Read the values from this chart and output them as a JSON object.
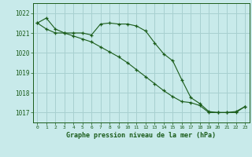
{
  "title": "Graphe pression niveau de la mer (hPa)",
  "background_color": "#c8eaea",
  "grid_color": "#a8d0d0",
  "line_color": "#1a5c1a",
  "xlim": [
    -0.5,
    23.5
  ],
  "ylim": [
    1016.5,
    1022.5
  ],
  "yticks": [
    1017,
    1018,
    1019,
    1020,
    1021,
    1022
  ],
  "xticks": [
    0,
    1,
    2,
    3,
    4,
    5,
    6,
    7,
    8,
    9,
    10,
    11,
    12,
    13,
    14,
    15,
    16,
    17,
    18,
    19,
    20,
    21,
    22,
    23
  ],
  "series1_x": [
    0,
    1,
    2,
    3,
    4,
    5,
    6,
    7,
    8,
    9,
    10,
    11,
    12,
    13,
    14,
    15,
    16,
    17,
    18,
    19,
    20,
    21,
    22,
    23
  ],
  "series1_y": [
    1021.5,
    1021.75,
    1021.2,
    1021.0,
    1021.0,
    1021.0,
    1020.9,
    1021.45,
    1021.5,
    1021.45,
    1021.45,
    1021.35,
    1021.1,
    1020.5,
    1019.95,
    1019.6,
    1018.65,
    1017.75,
    1017.45,
    1017.05,
    1017.0,
    1017.0,
    1017.05,
    1017.3
  ],
  "series2_x": [
    0,
    1,
    2,
    3,
    4,
    5,
    6,
    7,
    8,
    9,
    10,
    11,
    12,
    13,
    14,
    15,
    16,
    17,
    18,
    19,
    20,
    21,
    22,
    23
  ],
  "series2_y": [
    1021.5,
    1021.2,
    1021.0,
    1021.0,
    1020.85,
    1020.7,
    1020.55,
    1020.3,
    1020.05,
    1019.8,
    1019.5,
    1019.15,
    1018.8,
    1018.45,
    1018.1,
    1017.8,
    1017.55,
    1017.5,
    1017.35,
    1017.0,
    1017.0,
    1017.0,
    1017.0,
    1017.3
  ]
}
